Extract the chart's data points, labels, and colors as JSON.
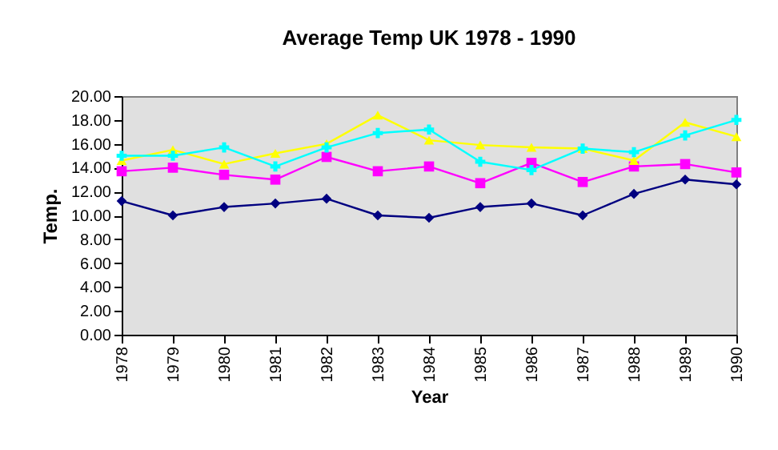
{
  "chart_data": {
    "type": "line",
    "title": "Average Temp UK 1978 - 1990",
    "xlabel": "Year",
    "ylabel": "Temp.",
    "categories": [
      "1978",
      "1979",
      "1980",
      "1981",
      "1982",
      "1983",
      "1984",
      "1985",
      "1986",
      "1987",
      "1988",
      "1989",
      "1990"
    ],
    "series": [
      {
        "color": "#000080",
        "marker": "diamond",
        "values": [
          11.2,
          10.0,
          10.7,
          11.0,
          11.4,
          10.0,
          9.8,
          10.7,
          11.0,
          10.0,
          11.8,
          13.0,
          12.6
        ]
      },
      {
        "color": "#ff00ff",
        "marker": "square",
        "values": [
          13.7,
          14.0,
          13.4,
          13.0,
          14.9,
          13.7,
          14.1,
          12.7,
          14.4,
          12.8,
          14.1,
          14.3,
          13.6
        ]
      },
      {
        "color": "#ffff00",
        "marker": "triangle",
        "values": [
          14.6,
          15.5,
          14.3,
          15.2,
          16.0,
          18.4,
          16.3,
          15.9,
          15.7,
          15.6,
          14.6,
          17.8,
          16.6
        ]
      },
      {
        "color": "#00ffff",
        "marker": "cross",
        "values": [
          15.0,
          15.0,
          15.7,
          14.1,
          15.7,
          16.9,
          17.2,
          14.5,
          13.8,
          15.6,
          15.3,
          16.7,
          18.0
        ]
      }
    ],
    "ylim": [
      0,
      20
    ],
    "yticks": [
      {
        "value": 0,
        "label": "0.00"
      },
      {
        "value": 2,
        "label": "2.00"
      },
      {
        "value": 4,
        "label": "4.00"
      },
      {
        "value": 6,
        "label": "6.00"
      },
      {
        "value": 8,
        "label": "8.00"
      },
      {
        "value": 10,
        "label": "10.00"
      },
      {
        "value": 12,
        "label": "12.00"
      },
      {
        "value": 14,
        "label": "14.00"
      },
      {
        "value": 16,
        "label": "16.00"
      },
      {
        "value": 18,
        "label": "18.00"
      },
      {
        "value": 20,
        "label": "20.00"
      }
    ],
    "grid": false
  }
}
